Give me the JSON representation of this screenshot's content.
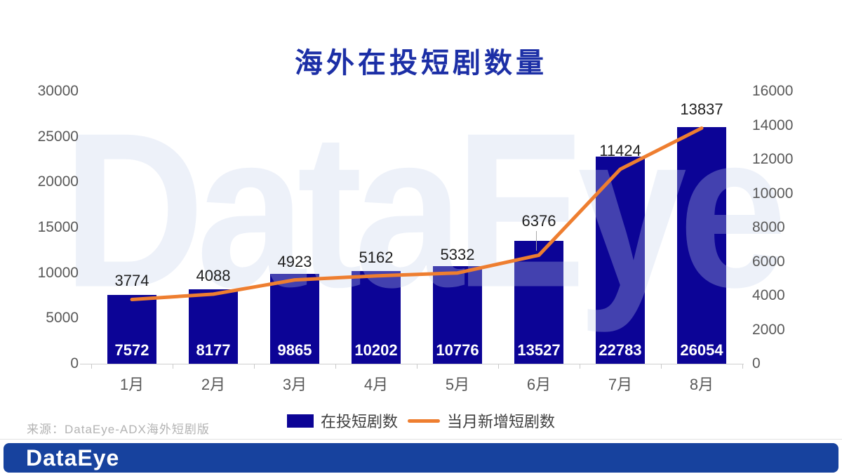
{
  "slide": {
    "watermark_text": "DataEye",
    "source_note": "来源：DataEye-ADX海外短剧版",
    "footer_logo": "DataEye"
  },
  "chart_data": {
    "type": "bar",
    "subtype": "combo-bar-line",
    "title": "海外在投短剧数量",
    "categories": [
      "1月",
      "2月",
      "3月",
      "4月",
      "5月",
      "6月",
      "7月",
      "8月"
    ],
    "series": [
      {
        "name": "在投短剧数",
        "type": "bar",
        "axis": "left",
        "color": "#0c0496",
        "values": [
          7572,
          8177,
          9865,
          10202,
          10776,
          13527,
          22783,
          26054
        ]
      },
      {
        "name": "当月新增短剧数",
        "type": "line",
        "axis": "right",
        "color": "#ee7e30",
        "values": [
          3774,
          4088,
          4923,
          5162,
          5332,
          6376,
          11424,
          13837
        ]
      }
    ],
    "left_axis": {
      "min": 0,
      "max": 30000,
      "step": 5000,
      "ticks": [
        0,
        5000,
        10000,
        15000,
        20000,
        25000,
        30000
      ]
    },
    "right_axis": {
      "min": 0,
      "max": 16000,
      "step": 2000,
      "ticks": [
        0,
        2000,
        4000,
        6000,
        8000,
        10000,
        12000,
        14000,
        16000
      ]
    },
    "legend_position": "bottom",
    "grid": false,
    "annotations": {
      "leader_line_category": "6月"
    }
  },
  "colors": {
    "bar": "#0c0496",
    "line": "#ee7e30",
    "title": "#1c2fa6",
    "footer_bar": "#17429e",
    "axis_text": "#595959",
    "data_label": "#1f1f1f",
    "bar_label": "#ffffff",
    "source_text": "#b3b3b3",
    "watermark": "#c5d1eb"
  }
}
